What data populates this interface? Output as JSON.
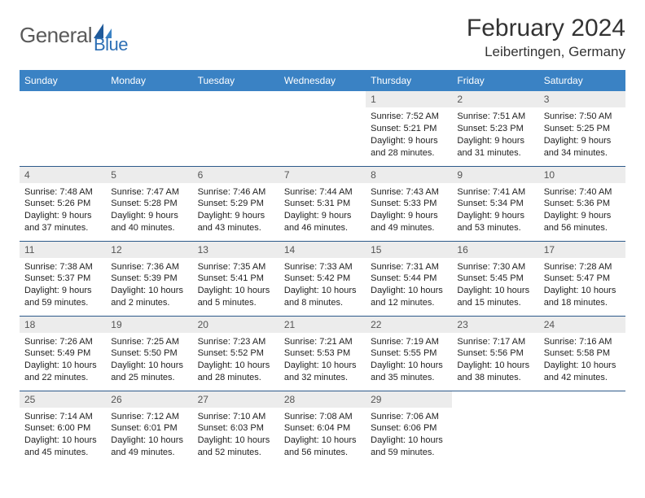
{
  "brand": {
    "part1": "General",
    "part2": "Blue"
  },
  "title": "February 2024",
  "location": "Leibertingen, Germany",
  "headers": [
    "Sunday",
    "Monday",
    "Tuesday",
    "Wednesday",
    "Thursday",
    "Friday",
    "Saturday"
  ],
  "colors": {
    "header_bg": "#3a82c4",
    "header_fg": "#ffffff",
    "daynum_bg": "#ececec",
    "daynum_fg": "#555555",
    "border": "#2d5a8a",
    "logo_gray": "#5a5a5a",
    "logo_blue": "#2d6fb5"
  },
  "weeks": [
    [
      null,
      null,
      null,
      null,
      {
        "n": "1",
        "sr": "Sunrise: 7:52 AM",
        "ss": "Sunset: 5:21 PM",
        "d1": "Daylight: 9 hours",
        "d2": "and 28 minutes."
      },
      {
        "n": "2",
        "sr": "Sunrise: 7:51 AM",
        "ss": "Sunset: 5:23 PM",
        "d1": "Daylight: 9 hours",
        "d2": "and 31 minutes."
      },
      {
        "n": "3",
        "sr": "Sunrise: 7:50 AM",
        "ss": "Sunset: 5:25 PM",
        "d1": "Daylight: 9 hours",
        "d2": "and 34 minutes."
      }
    ],
    [
      {
        "n": "4",
        "sr": "Sunrise: 7:48 AM",
        "ss": "Sunset: 5:26 PM",
        "d1": "Daylight: 9 hours",
        "d2": "and 37 minutes."
      },
      {
        "n": "5",
        "sr": "Sunrise: 7:47 AM",
        "ss": "Sunset: 5:28 PM",
        "d1": "Daylight: 9 hours",
        "d2": "and 40 minutes."
      },
      {
        "n": "6",
        "sr": "Sunrise: 7:46 AM",
        "ss": "Sunset: 5:29 PM",
        "d1": "Daylight: 9 hours",
        "d2": "and 43 minutes."
      },
      {
        "n": "7",
        "sr": "Sunrise: 7:44 AM",
        "ss": "Sunset: 5:31 PM",
        "d1": "Daylight: 9 hours",
        "d2": "and 46 minutes."
      },
      {
        "n": "8",
        "sr": "Sunrise: 7:43 AM",
        "ss": "Sunset: 5:33 PM",
        "d1": "Daylight: 9 hours",
        "d2": "and 49 minutes."
      },
      {
        "n": "9",
        "sr": "Sunrise: 7:41 AM",
        "ss": "Sunset: 5:34 PM",
        "d1": "Daylight: 9 hours",
        "d2": "and 53 minutes."
      },
      {
        "n": "10",
        "sr": "Sunrise: 7:40 AM",
        "ss": "Sunset: 5:36 PM",
        "d1": "Daylight: 9 hours",
        "d2": "and 56 minutes."
      }
    ],
    [
      {
        "n": "11",
        "sr": "Sunrise: 7:38 AM",
        "ss": "Sunset: 5:37 PM",
        "d1": "Daylight: 9 hours",
        "d2": "and 59 minutes."
      },
      {
        "n": "12",
        "sr": "Sunrise: 7:36 AM",
        "ss": "Sunset: 5:39 PM",
        "d1": "Daylight: 10 hours",
        "d2": "and 2 minutes."
      },
      {
        "n": "13",
        "sr": "Sunrise: 7:35 AM",
        "ss": "Sunset: 5:41 PM",
        "d1": "Daylight: 10 hours",
        "d2": "and 5 minutes."
      },
      {
        "n": "14",
        "sr": "Sunrise: 7:33 AM",
        "ss": "Sunset: 5:42 PM",
        "d1": "Daylight: 10 hours",
        "d2": "and 8 minutes."
      },
      {
        "n": "15",
        "sr": "Sunrise: 7:31 AM",
        "ss": "Sunset: 5:44 PM",
        "d1": "Daylight: 10 hours",
        "d2": "and 12 minutes."
      },
      {
        "n": "16",
        "sr": "Sunrise: 7:30 AM",
        "ss": "Sunset: 5:45 PM",
        "d1": "Daylight: 10 hours",
        "d2": "and 15 minutes."
      },
      {
        "n": "17",
        "sr": "Sunrise: 7:28 AM",
        "ss": "Sunset: 5:47 PM",
        "d1": "Daylight: 10 hours",
        "d2": "and 18 minutes."
      }
    ],
    [
      {
        "n": "18",
        "sr": "Sunrise: 7:26 AM",
        "ss": "Sunset: 5:49 PM",
        "d1": "Daylight: 10 hours",
        "d2": "and 22 minutes."
      },
      {
        "n": "19",
        "sr": "Sunrise: 7:25 AM",
        "ss": "Sunset: 5:50 PM",
        "d1": "Daylight: 10 hours",
        "d2": "and 25 minutes."
      },
      {
        "n": "20",
        "sr": "Sunrise: 7:23 AM",
        "ss": "Sunset: 5:52 PM",
        "d1": "Daylight: 10 hours",
        "d2": "and 28 minutes."
      },
      {
        "n": "21",
        "sr": "Sunrise: 7:21 AM",
        "ss": "Sunset: 5:53 PM",
        "d1": "Daylight: 10 hours",
        "d2": "and 32 minutes."
      },
      {
        "n": "22",
        "sr": "Sunrise: 7:19 AM",
        "ss": "Sunset: 5:55 PM",
        "d1": "Daylight: 10 hours",
        "d2": "and 35 minutes."
      },
      {
        "n": "23",
        "sr": "Sunrise: 7:17 AM",
        "ss": "Sunset: 5:56 PM",
        "d1": "Daylight: 10 hours",
        "d2": "and 38 minutes."
      },
      {
        "n": "24",
        "sr": "Sunrise: 7:16 AM",
        "ss": "Sunset: 5:58 PM",
        "d1": "Daylight: 10 hours",
        "d2": "and 42 minutes."
      }
    ],
    [
      {
        "n": "25",
        "sr": "Sunrise: 7:14 AM",
        "ss": "Sunset: 6:00 PM",
        "d1": "Daylight: 10 hours",
        "d2": "and 45 minutes."
      },
      {
        "n": "26",
        "sr": "Sunrise: 7:12 AM",
        "ss": "Sunset: 6:01 PM",
        "d1": "Daylight: 10 hours",
        "d2": "and 49 minutes."
      },
      {
        "n": "27",
        "sr": "Sunrise: 7:10 AM",
        "ss": "Sunset: 6:03 PM",
        "d1": "Daylight: 10 hours",
        "d2": "and 52 minutes."
      },
      {
        "n": "28",
        "sr": "Sunrise: 7:08 AM",
        "ss": "Sunset: 6:04 PM",
        "d1": "Daylight: 10 hours",
        "d2": "and 56 minutes."
      },
      {
        "n": "29",
        "sr": "Sunrise: 7:06 AM",
        "ss": "Sunset: 6:06 PM",
        "d1": "Daylight: 10 hours",
        "d2": "and 59 minutes."
      },
      null,
      null
    ]
  ]
}
